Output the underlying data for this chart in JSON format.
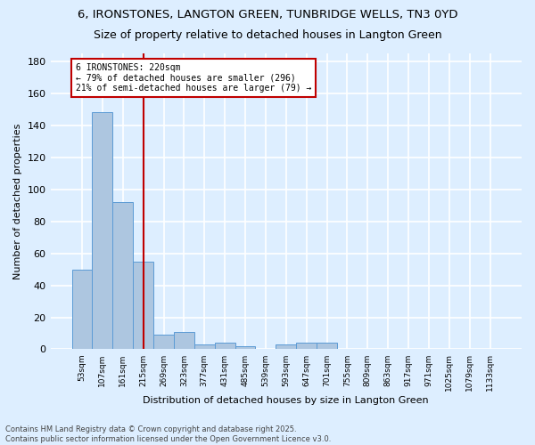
{
  "title1": "6, IRONSTONES, LANGTON GREEN, TUNBRIDGE WELLS, TN3 0YD",
  "title2": "Size of property relative to detached houses in Langton Green",
  "xlabel": "Distribution of detached houses by size in Langton Green",
  "ylabel": "Number of detached properties",
  "categories": [
    "53sqm",
    "107sqm",
    "161sqm",
    "215sqm",
    "269sqm",
    "323sqm",
    "377sqm",
    "431sqm",
    "485sqm",
    "539sqm",
    "593sqm",
    "647sqm",
    "701sqm",
    "755sqm",
    "809sqm",
    "863sqm",
    "917sqm",
    "971sqm",
    "1025sqm",
    "1079sqm",
    "1133sqm"
  ],
  "values": [
    50,
    148,
    92,
    55,
    9,
    11,
    3,
    4,
    2,
    0,
    3,
    4,
    4,
    0,
    0,
    0,
    0,
    0,
    0,
    0,
    0
  ],
  "bar_color": "#adc6e0",
  "bar_edge_color": "#5b9bd5",
  "red_line_x": 3.0,
  "annotation_text": "6 IRONSTONES: 220sqm\n← 79% of detached houses are smaller (296)\n21% of semi-detached houses are larger (79) →",
  "annotation_box_color": "#ffffff",
  "annotation_border_color": "#c00000",
  "vline_color": "#c00000",
  "ylim": [
    0,
    185
  ],
  "yticks": [
    0,
    20,
    40,
    60,
    80,
    100,
    120,
    140,
    160,
    180
  ],
  "background_color": "#ddeeff",
  "plot_bg_color": "#ddeeff",
  "grid_color": "#ffffff",
  "footer": "Contains HM Land Registry data © Crown copyright and database right 2025.\nContains public sector information licensed under the Open Government Licence v3.0.",
  "title_fontsize": 9.5,
  "subtitle_fontsize": 9
}
